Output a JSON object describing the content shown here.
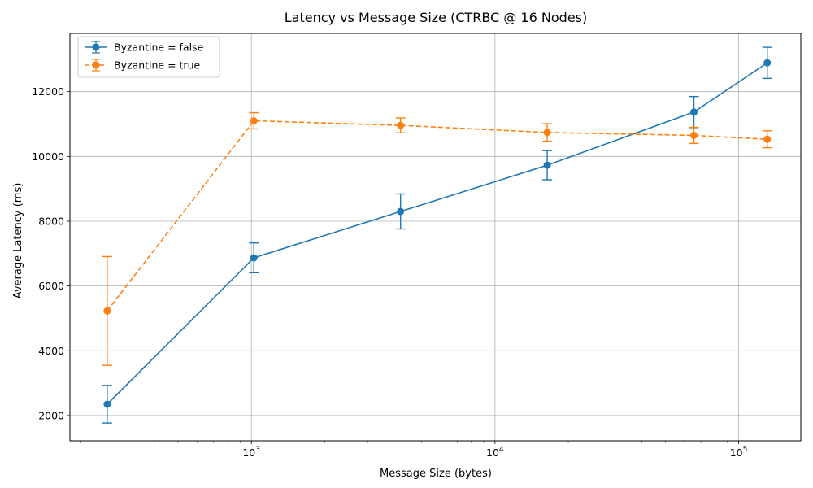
{
  "chart_data": {
    "type": "line",
    "title": "Latency vs Message Size (CTRBC @ 16 Nodes)",
    "xlabel": "Message Size (bytes)",
    "ylabel": "Average Latency (ms)",
    "x_scale": "log",
    "xlim": [
      180,
      180000
    ],
    "ylim": [
      1220,
      13800
    ],
    "grid": true,
    "legend_position": "top-left",
    "x_major_ticks": [
      {
        "value": 1000,
        "base": "10",
        "exp": "3"
      },
      {
        "value": 10000,
        "base": "10",
        "exp": "4"
      },
      {
        "value": 100000,
        "base": "10",
        "exp": "5"
      }
    ],
    "y_ticks": [
      {
        "value": 2000,
        "label": "2000"
      },
      {
        "value": 4000,
        "label": "4000"
      },
      {
        "value": 6000,
        "label": "6000"
      },
      {
        "value": 8000,
        "label": "8000"
      },
      {
        "value": 10000,
        "label": "10000"
      },
      {
        "value": 12000,
        "label": "12000"
      }
    ],
    "series": [
      {
        "name": "Byzantine = false",
        "color": "#1f77b4",
        "line_style": "solid",
        "x": [
          256,
          1024,
          4096,
          16384,
          65536,
          131072
        ],
        "y": [
          2350,
          6870,
          8300,
          9730,
          11370,
          12890
        ],
        "error": [
          580,
          460,
          540,
          450,
          480,
          480
        ]
      },
      {
        "name": "Byzantine = true",
        "color": "#ff7f0e",
        "line_style": "dashed",
        "x": [
          256,
          1024,
          4096,
          16384,
          65536,
          131072
        ],
        "y": [
          5230,
          11100,
          10960,
          10740,
          10650,
          10530
        ],
        "error": [
          1680,
          250,
          230,
          270,
          250,
          260
        ]
      }
    ]
  }
}
